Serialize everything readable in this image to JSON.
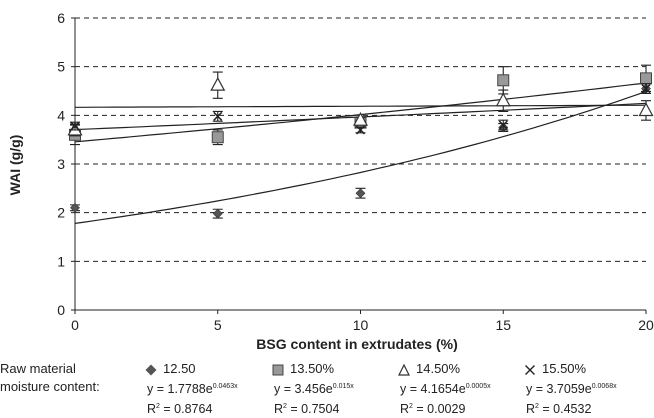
{
  "chart_data": {
    "type": "scatter",
    "xlabel": "BSG content in extrudates (%)",
    "ylabel": "WAI (g/g)",
    "xlim": [
      0,
      20
    ],
    "ylim": [
      0,
      6
    ],
    "xticks": [
      "0",
      "5",
      "10",
      "15",
      "20"
    ],
    "yticks": [
      "0",
      "1",
      "2",
      "3",
      "4",
      "5",
      "6"
    ],
    "grid": "horizontal dashed",
    "legend_title": "Raw material moisture content:",
    "legend_placement": "bottom",
    "series": [
      {
        "name": "12.50",
        "marker": "diamond",
        "color": "#555555",
        "x": [
          0,
          5,
          10,
          15,
          20
        ],
        "y": [
          2.1,
          1.98,
          2.4,
          3.75,
          4.55
        ],
        "err": [
          0.06,
          0.09,
          0.1,
          0.08,
          0.1
        ],
        "equation": "y = 1.7788e",
        "equation_exp": "0.0463x",
        "r2_label": "R",
        "r2_value": " = 0.8764"
      },
      {
        "name": "13.50%",
        "marker": "square",
        "color": "#999999",
        "x": [
          0,
          5,
          10,
          15,
          20
        ],
        "y": [
          3.6,
          3.55,
          3.85,
          4.72,
          4.76
        ],
        "err": [
          0.2,
          0.15,
          0.09,
          0.28,
          0.27
        ],
        "equation": "y = 3.456e",
        "equation_exp": "0.015x",
        "r2_label": "R",
        "r2_value": " = 0.7504"
      },
      {
        "name": "14.50%",
        "marker": "triangle",
        "color": "#333333",
        "x": [
          0,
          5,
          10,
          15,
          20
        ],
        "y": [
          3.7,
          4.62,
          3.9,
          4.3,
          4.1
        ],
        "err": [
          0.12,
          0.27,
          0.06,
          0.22,
          0.2
        ],
        "equation": "y = 4.1654e",
        "equation_exp": "0.0005x",
        "r2_label": "R",
        "r2_value": " = 0.0029"
      },
      {
        "name": "15.50%",
        "marker": "cross",
        "color": "#222222",
        "x": [
          0,
          5,
          10,
          15,
          20
        ],
        "y": [
          3.78,
          3.98,
          3.7,
          3.8,
          4.55
        ],
        "err": [
          0.08,
          0.1,
          0.06,
          0.1,
          0.1
        ],
        "equation": "y = 3.7059e",
        "equation_exp": "0.0068x",
        "r2_label": "R",
        "r2_value": " = 0.4532"
      }
    ],
    "trendlines": [
      {
        "a": 1.7788,
        "b": 0.0463
      },
      {
        "a": 3.456,
        "b": 0.015
      },
      {
        "a": 4.1654,
        "b": 0.0005
      },
      {
        "a": 3.7059,
        "b": 0.0068
      }
    ]
  }
}
